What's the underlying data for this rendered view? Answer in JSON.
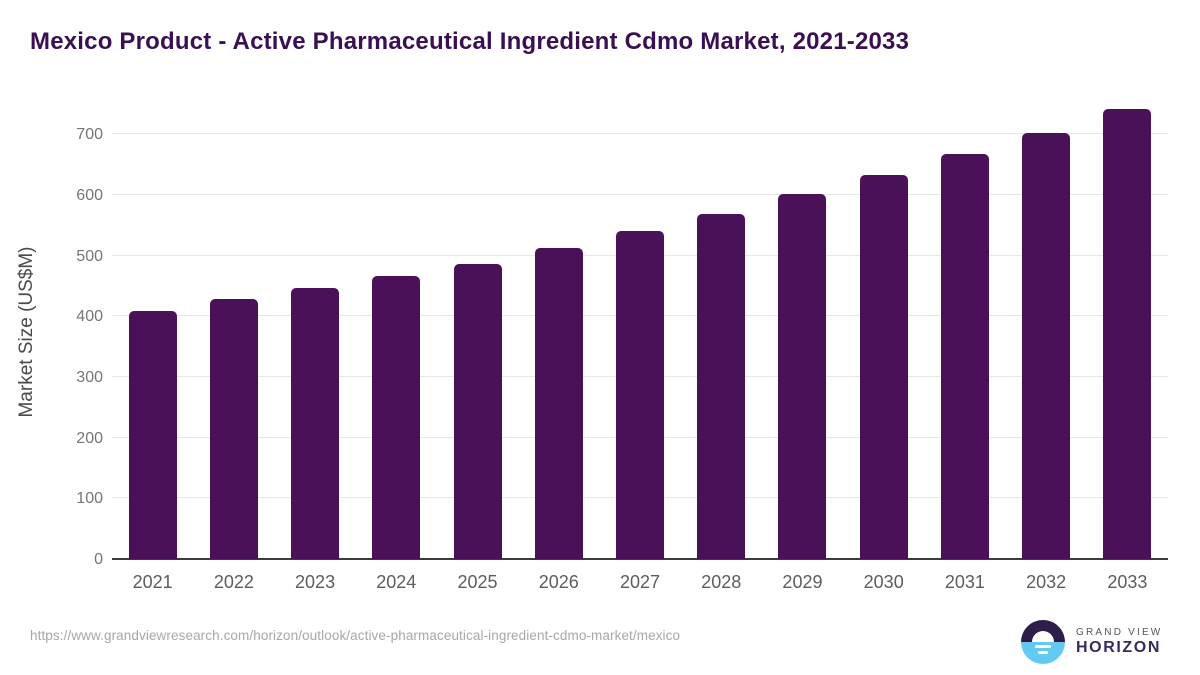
{
  "title": "Mexico Product - Active Pharmaceutical Ingredient Cdmo Market, 2021-2033",
  "chart_data": {
    "type": "bar",
    "title": "Mexico Product - Active Pharmaceutical Ingredient Cdmo Market, 2021-2033",
    "categories": [
      "2021",
      "2022",
      "2023",
      "2024",
      "2025",
      "2026",
      "2027",
      "2028",
      "2029",
      "2030",
      "2031",
      "2032",
      "2033"
    ],
    "values": [
      408,
      428,
      446,
      467,
      486,
      513,
      540,
      569,
      601,
      633,
      668,
      702,
      742
    ],
    "xlabel": "",
    "ylabel": "Market Size (US$M)",
    "ylim": [
      0,
      750
    ],
    "yticks": [
      0,
      100,
      200,
      300,
      400,
      500,
      600,
      700
    ],
    "grid": "horizontal-only",
    "legend": "none",
    "bar_color": "#4a1158"
  },
  "colors": {
    "title_text": "#3b1053",
    "bar_fill": "#4a1158",
    "gridline": "#e7e7e7",
    "axis_baseline": "#3c3c3c",
    "ytick_text": "#757575",
    "xtick_text": "#5d5d5d",
    "url_text": "#a7a7a7",
    "logo_dark_half": "#2e1c49",
    "logo_blue_half": "#63c9f1",
    "logo_brand_top_text": "#55555f",
    "logo_brand_bottom_text": "#3a2960"
  },
  "footer": {
    "source_url": "https://www.grandviewresearch.com/horizon/outlook/active-pharmaceutical-ingredient-cdmo-market/mexico",
    "logo": {
      "icon": "sunrise-horizon-icon",
      "brand_top": "GRAND VIEW",
      "brand_bottom": "HORIZON"
    }
  }
}
